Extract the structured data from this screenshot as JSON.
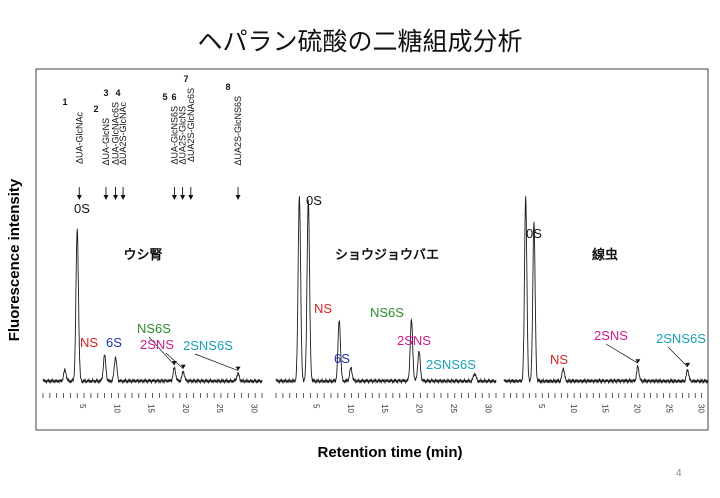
{
  "slide": {
    "title": "ヘパラン硫酸の二糖組成分析",
    "page_number": "4"
  },
  "chart_data": {
    "type": "line",
    "ylabel": "Fluorescence intensity",
    "xlabel": "Retention time (min)",
    "standards": [
      {
        "number": "1",
        "name": "ΔUA-GlcNAc",
        "time": 5.3
      },
      {
        "number": "2",
        "name": "ΔUA-GlcNS",
        "time": 9.2
      },
      {
        "number": "3",
        "name": "ΔUA-GlcNAc6S",
        "time": 10.6
      },
      {
        "number": "4",
        "name": "ΔUA2S-GlcNAc",
        "time": 11.7
      },
      {
        "number": "5",
        "name": "ΔUA-GlcNS6S",
        "time": 19.2
      },
      {
        "number": "6",
        "name": "ΔUA2S-GlcNS",
        "time": 20.4
      },
      {
        "number": "7",
        "name": "ΔUA2S-GlcNAc6S",
        "time": 21.6
      },
      {
        "number": "8",
        "name": "ΔUA2S-GlcNS6S",
        "time": 28.5
      }
    ],
    "panels": [
      {
        "label": "ウシ腎",
        "x_ticks": [
          "5",
          "10",
          "15",
          "20",
          "25",
          "30"
        ],
        "xlim": [
          0,
          32
        ],
        "ylim": [
          0,
          100
        ],
        "peaks": [
          {
            "label": "",
            "time": 3.2,
            "height": 6
          },
          {
            "label": "0S",
            "time": 5.0,
            "height": 82
          },
          {
            "label": "NS",
            "time": 9.0,
            "height": 14,
            "color": "#d9201f"
          },
          {
            "label": "6S",
            "time": 10.6,
            "height": 13,
            "color": "#1f2fb4"
          },
          {
            "label": "NS6S",
            "time": 19.2,
            "height": 7,
            "color": "#2e8b2e"
          },
          {
            "label": "2SNS",
            "time": 20.5,
            "height": 5,
            "color": "#d0198c"
          },
          {
            "label": "2SNS6S",
            "time": 28.5,
            "height": 4,
            "color": "#1aa2b8"
          }
        ]
      },
      {
        "label": "ショウジョウバエ",
        "x_ticks": [
          "5",
          "10",
          "15",
          "20",
          "25",
          "30"
        ],
        "xlim": [
          0,
          32
        ],
        "ylim": [
          0,
          100
        ],
        "peaks": [
          {
            "label": "",
            "time": 3.4,
            "height": 100
          },
          {
            "label": "0S",
            "time": 4.7,
            "height": 98
          },
          {
            "label": "NS",
            "time": 9.2,
            "height": 33,
            "color": "#d9201f"
          },
          {
            "label": "6S",
            "time": 10.9,
            "height": 7,
            "color": "#1f2fb4"
          },
          {
            "label": "NS6S",
            "time": 19.7,
            "height": 33,
            "color": "#2e8b2e"
          },
          {
            "label": "2SNS",
            "time": 20.8,
            "height": 16,
            "color": "#d0198c"
          },
          {
            "label": "2SNS6S",
            "time": 28.9,
            "height": 4,
            "color": "#1aa2b8"
          }
        ]
      },
      {
        "label": "線虫",
        "x_ticks": [
          "5",
          "10",
          "15",
          "20",
          "25",
          "30"
        ],
        "xlim": [
          0,
          32
        ],
        "ylim": [
          0,
          100
        ],
        "peaks": [
          {
            "label": "",
            "time": 3.4,
            "height": 100
          },
          {
            "label": "0S",
            "time": 4.7,
            "height": 86
          },
          {
            "label": "NS",
            "time": 9.3,
            "height": 7,
            "color": "#d9201f"
          },
          {
            "label": "2SNS",
            "time": 21.0,
            "height": 8,
            "color": "#d0198c"
          },
          {
            "label": "2SNS6S",
            "time": 28.8,
            "height": 6,
            "color": "#1aa2b8"
          }
        ]
      }
    ]
  }
}
